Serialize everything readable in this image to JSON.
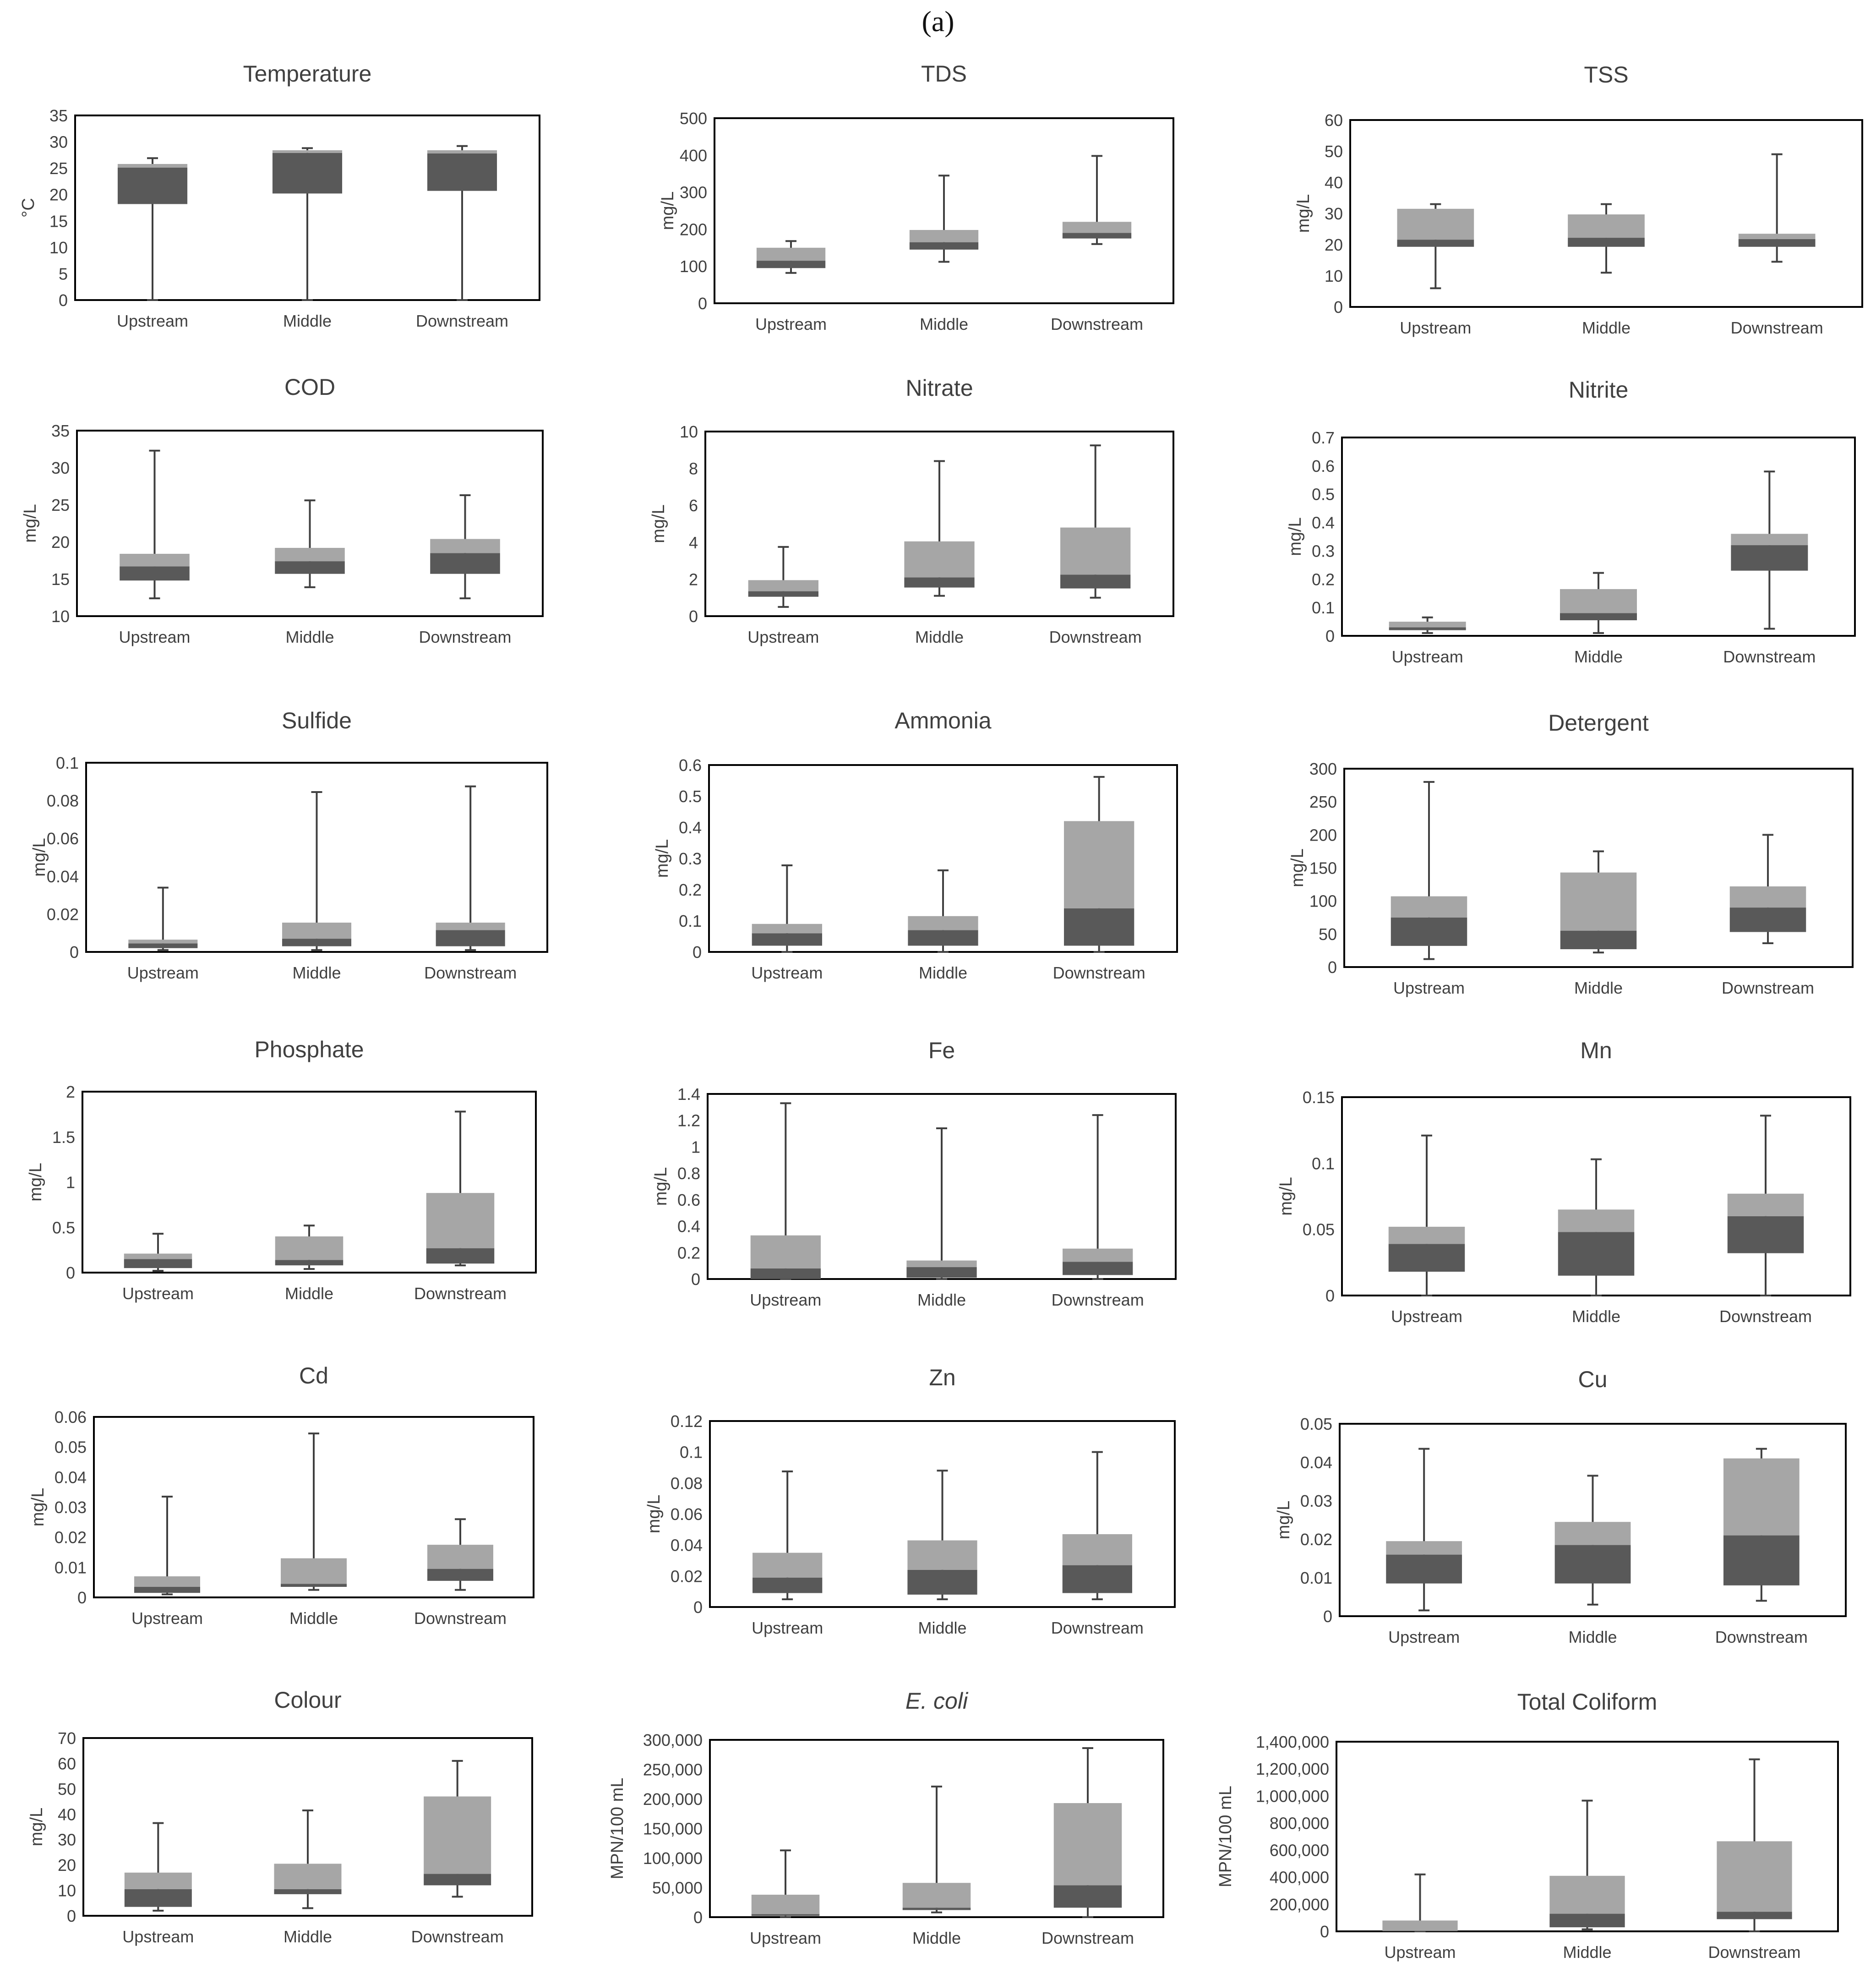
{
  "figure_label": "(a)",
  "colors": {
    "upper_box": "#a6a6a6",
    "lower_box": "#595959",
    "whisker": "#404040",
    "frame": "#000000",
    "text": "#404040"
  },
  "chart_data": [
    {
      "type": "box",
      "title": "Temperature",
      "title_italic": false,
      "ylabel": "°C",
      "yticks": [
        "0",
        "5",
        "10",
        "15",
        "20",
        "25",
        "30",
        "35"
      ],
      "ylim": [
        0,
        35
      ],
      "categories": [
        "Upstream",
        "Middle",
        "Downstream"
      ],
      "boxes": [
        {
          "min": 0,
          "q1": 18.2,
          "median": 25.1,
          "q3": 25.8,
          "max": 26.9
        },
        {
          "min": 0,
          "q1": 20.2,
          "median": 27.9,
          "q3": 28.4,
          "max": 28.8
        },
        {
          "min": 0,
          "q1": 20.7,
          "median": 27.8,
          "q3": 28.4,
          "max": 29.2
        }
      ]
    },
    {
      "type": "box",
      "title": "TDS",
      "title_italic": false,
      "ylabel": "mg/L",
      "yticks": [
        "0",
        "100",
        "200",
        "300",
        "400",
        "500"
      ],
      "ylim": [
        0,
        500
      ],
      "categories": [
        "Upstream",
        "Middle",
        "Downstream"
      ],
      "boxes": [
        {
          "min": 82,
          "q1": 95,
          "median": 115,
          "q3": 150,
          "max": 168
        },
        {
          "min": 112,
          "q1": 145,
          "median": 165,
          "q3": 198,
          "max": 345
        },
        {
          "min": 160,
          "q1": 175,
          "median": 190,
          "q3": 220,
          "max": 398
        }
      ]
    },
    {
      "type": "box",
      "title": "TSS",
      "title_italic": false,
      "ylabel": "mg/L",
      "yticks": [
        "0",
        "10",
        "20",
        "30",
        "40",
        "50",
        "60"
      ],
      "ylim": [
        0,
        60
      ],
      "categories": [
        "Upstream",
        "Middle",
        "Downstream"
      ],
      "boxes": [
        {
          "min": 6,
          "q1": 19.3,
          "median": 21.6,
          "q3": 31.5,
          "max": 33
        },
        {
          "min": 11,
          "q1": 19.3,
          "median": 22.2,
          "q3": 29.7,
          "max": 33
        },
        {
          "min": 14.5,
          "q1": 19.3,
          "median": 21.8,
          "q3": 23.5,
          "max": 49
        }
      ]
    },
    {
      "type": "box",
      "title": "COD",
      "title_italic": false,
      "ylabel": "mg/L",
      "yticks": [
        "10",
        "15",
        "20",
        "25",
        "30",
        "35"
      ],
      "ylim": [
        10,
        35
      ],
      "categories": [
        "Upstream",
        "Middle",
        "Downstream"
      ],
      "boxes": [
        {
          "min": 12.4,
          "q1": 14.8,
          "median": 16.7,
          "q3": 18.4,
          "max": 32.3
        },
        {
          "min": 13.9,
          "q1": 15.7,
          "median": 17.4,
          "q3": 19.2,
          "max": 25.6
        },
        {
          "min": 12.4,
          "q1": 15.7,
          "median": 18.5,
          "q3": 20.4,
          "max": 26.3
        }
      ]
    },
    {
      "type": "box",
      "title": "Nitrate",
      "title_italic": false,
      "ylabel": "mg/L",
      "yticks": [
        "0",
        "2",
        "4",
        "6",
        "8",
        "10"
      ],
      "ylim": [
        0,
        10
      ],
      "categories": [
        "Upstream",
        "Middle",
        "Downstream"
      ],
      "boxes": [
        {
          "min": 0.5,
          "q1": 1.05,
          "median": 1.35,
          "q3": 1.95,
          "max": 3.75
        },
        {
          "min": 1.1,
          "q1": 1.55,
          "median": 2.1,
          "q3": 4.05,
          "max": 8.4
        },
        {
          "min": 1.0,
          "q1": 1.5,
          "median": 2.25,
          "q3": 4.8,
          "max": 9.25
        }
      ]
    },
    {
      "type": "box",
      "title": "Nitrite",
      "title_italic": false,
      "ylabel": "mg/L",
      "yticks": [
        "0",
        "0.1",
        "0.2",
        "0.3",
        "0.4",
        "0.5",
        "0.6",
        "0.7"
      ],
      "ylim": [
        0,
        0.7
      ],
      "categories": [
        "Upstream",
        "Middle",
        "Downstream"
      ],
      "boxes": [
        {
          "min": 0.01,
          "q1": 0.02,
          "median": 0.03,
          "q3": 0.05,
          "max": 0.065
        },
        {
          "min": 0.01,
          "q1": 0.055,
          "median": 0.08,
          "q3": 0.165,
          "max": 0.222
        },
        {
          "min": 0.025,
          "q1": 0.23,
          "median": 0.32,
          "q3": 0.36,
          "max": 0.58
        }
      ]
    },
    {
      "type": "box",
      "title": "Sulfide",
      "title_italic": false,
      "ylabel": "mg/L",
      "yticks": [
        "0",
        "0.02",
        "0.04",
        "0.06",
        "0.08",
        "0.1"
      ],
      "ylim": [
        0,
        0.1
      ],
      "categories": [
        "Upstream",
        "Middle",
        "Downstream"
      ],
      "boxes": [
        {
          "min": 0.001,
          "q1": 0.002,
          "median": 0.0045,
          "q3": 0.0065,
          "max": 0.034
        },
        {
          "min": 0.001,
          "q1": 0.003,
          "median": 0.007,
          "q3": 0.0155,
          "max": 0.0845
        },
        {
          "min": 0.001,
          "q1": 0.003,
          "median": 0.0115,
          "q3": 0.0155,
          "max": 0.0875
        }
      ]
    },
    {
      "type": "box",
      "title": "Ammonia",
      "title_italic": false,
      "ylabel": "mg/L",
      "yticks": [
        "0",
        "0.1",
        "0.2",
        "0.3",
        "0.4",
        "0.5",
        "0.6"
      ],
      "ylim": [
        0,
        0.6
      ],
      "categories": [
        "Upstream",
        "Middle",
        "Downstream"
      ],
      "boxes": [
        {
          "min": 0.0,
          "q1": 0.02,
          "median": 0.06,
          "q3": 0.09,
          "max": 0.278
        },
        {
          "min": 0.0,
          "q1": 0.02,
          "median": 0.07,
          "q3": 0.115,
          "max": 0.262
        },
        {
          "min": 0.0,
          "q1": 0.02,
          "median": 0.14,
          "q3": 0.42,
          "max": 0.562
        }
      ]
    },
    {
      "type": "box",
      "title": "Detergent",
      "title_italic": false,
      "ylabel": "mg/L",
      "yticks": [
        "0",
        "50",
        "100",
        "150",
        "200",
        "250",
        "300"
      ],
      "ylim": [
        0,
        300
      ],
      "categories": [
        "Upstream",
        "Middle",
        "Downstream"
      ],
      "boxes": [
        {
          "min": 12,
          "q1": 32,
          "median": 75,
          "q3": 107,
          "max": 280
        },
        {
          "min": 22,
          "q1": 27,
          "median": 55,
          "q3": 143,
          "max": 175
        },
        {
          "min": 36,
          "q1": 53,
          "median": 90,
          "q3": 122,
          "max": 200
        }
      ]
    },
    {
      "type": "box",
      "title": "Phosphate",
      "title_italic": false,
      "ylabel": "mg/L",
      "yticks": [
        "0",
        "0.5",
        "1",
        "1.5",
        "2"
      ],
      "ylim": [
        0,
        2
      ],
      "categories": [
        "Upstream",
        "Middle",
        "Downstream"
      ],
      "boxes": [
        {
          "min": 0.02,
          "q1": 0.05,
          "median": 0.15,
          "q3": 0.21,
          "max": 0.43
        },
        {
          "min": 0.04,
          "q1": 0.08,
          "median": 0.14,
          "q3": 0.4,
          "max": 0.52
        },
        {
          "min": 0.08,
          "q1": 0.1,
          "median": 0.27,
          "q3": 0.88,
          "max": 1.78
        }
      ]
    },
    {
      "type": "box",
      "title": "Fe",
      "title_italic": false,
      "ylabel": "mg/L",
      "yticks": [
        "0",
        "0.2",
        "0.4",
        "0.6",
        "0.8",
        "1",
        "1.2",
        "1.4"
      ],
      "ylim": [
        0,
        1.4
      ],
      "categories": [
        "Upstream",
        "Middle",
        "Downstream"
      ],
      "boxes": [
        {
          "min": 0.0,
          "q1": 0.0,
          "median": 0.08,
          "q3": 0.33,
          "max": 1.33
        },
        {
          "min": 0.0,
          "q1": 0.01,
          "median": 0.09,
          "q3": 0.14,
          "max": 1.14
        },
        {
          "min": 0.0,
          "q1": 0.03,
          "median": 0.13,
          "q3": 0.23,
          "max": 1.24
        }
      ]
    },
    {
      "type": "box",
      "title": "Mn",
      "title_italic": false,
      "ylabel": "mg/L",
      "yticks": [
        "0",
        "0.05",
        "0.1",
        "0.15"
      ],
      "ylim": [
        0,
        0.15
      ],
      "categories": [
        "Upstream",
        "Middle",
        "Downstream"
      ],
      "boxes": [
        {
          "min": 0.0,
          "q1": 0.018,
          "median": 0.039,
          "q3": 0.052,
          "max": 0.121
        },
        {
          "min": 0.0,
          "q1": 0.015,
          "median": 0.048,
          "q3": 0.065,
          "max": 0.103
        },
        {
          "min": 0.0,
          "q1": 0.032,
          "median": 0.06,
          "q3": 0.077,
          "max": 0.136
        }
      ]
    },
    {
      "type": "box",
      "title": "Cd",
      "title_italic": false,
      "ylabel": "mg/L",
      "yticks": [
        "0",
        "0.01",
        "0.02",
        "0.03",
        "0.04",
        "0.05",
        "0.06"
      ],
      "ylim": [
        0,
        0.06
      ],
      "categories": [
        "Upstream",
        "Middle",
        "Downstream"
      ],
      "boxes": [
        {
          "min": 0.001,
          "q1": 0.0015,
          "median": 0.0035,
          "q3": 0.007,
          "max": 0.0335
        },
        {
          "min": 0.0025,
          "q1": 0.0035,
          "median": 0.0045,
          "q3": 0.013,
          "max": 0.0545
        },
        {
          "min": 0.0025,
          "q1": 0.0055,
          "median": 0.0095,
          "q3": 0.0175,
          "max": 0.026
        }
      ]
    },
    {
      "type": "box",
      "title": "Zn",
      "title_italic": false,
      "ylabel": "mg/L",
      "yticks": [
        "0",
        "0.02",
        "0.04",
        "0.06",
        "0.08",
        "0.1",
        "0.12"
      ],
      "ylim": [
        0,
        0.12
      ],
      "categories": [
        "Upstream",
        "Middle",
        "Downstream"
      ],
      "boxes": [
        {
          "min": 0.005,
          "q1": 0.009,
          "median": 0.019,
          "q3": 0.035,
          "max": 0.0875
        },
        {
          "min": 0.005,
          "q1": 0.008,
          "median": 0.024,
          "q3": 0.043,
          "max": 0.088
        },
        {
          "min": 0.005,
          "q1": 0.009,
          "median": 0.027,
          "q3": 0.047,
          "max": 0.1
        }
      ]
    },
    {
      "type": "box",
      "title": "Cu",
      "title_italic": false,
      "ylabel": "mg/L",
      "yticks": [
        "0",
        "0.01",
        "0.02",
        "0.03",
        "0.04",
        "0.05"
      ],
      "ylim": [
        0,
        0.05
      ],
      "categories": [
        "Upstream",
        "Middle",
        "Downstream"
      ],
      "boxes": [
        {
          "min": 0.0015,
          "q1": 0.0085,
          "median": 0.016,
          "q3": 0.0195,
          "max": 0.0435
        },
        {
          "min": 0.003,
          "q1": 0.0085,
          "median": 0.0185,
          "q3": 0.0245,
          "max": 0.0365
        },
        {
          "min": 0.004,
          "q1": 0.008,
          "median": 0.021,
          "q3": 0.041,
          "max": 0.0435
        }
      ]
    },
    {
      "type": "box",
      "title": "Colour",
      "title_italic": false,
      "ylabel": "mg/L",
      "yticks": [
        "0",
        "10",
        "20",
        "30",
        "40",
        "50",
        "60",
        "70"
      ],
      "ylim": [
        0,
        70
      ],
      "categories": [
        "Upstream",
        "Middle",
        "Downstream"
      ],
      "boxes": [
        {
          "min": 2,
          "q1": 3.5,
          "median": 10.5,
          "q3": 17,
          "max": 36.5
        },
        {
          "min": 3,
          "q1": 8.5,
          "median": 10.5,
          "q3": 20.5,
          "max": 41.5
        },
        {
          "min": 7.5,
          "q1": 12,
          "median": 16.5,
          "q3": 47,
          "max": 61
        }
      ]
    },
    {
      "type": "box",
      "title": "E. coli",
      "title_italic": true,
      "ylabel": "MPN/100 mL",
      "yticks": [
        "0",
        "50,000",
        "100,000",
        "150,000",
        "200,000",
        "250,000",
        "300,000"
      ],
      "ylim": [
        0,
        300000
      ],
      "categories": [
        "Upstream",
        "Middle",
        "Downstream"
      ],
      "boxes": [
        {
          "min": 0,
          "q1": 2000,
          "median": 5000,
          "q3": 38000,
          "max": 113000
        },
        {
          "min": 8000,
          "q1": 12000,
          "median": 16000,
          "q3": 58000,
          "max": 221000
        },
        {
          "min": 0,
          "q1": 16000,
          "median": 54000,
          "q3": 193000,
          "max": 286000
        }
      ]
    },
    {
      "type": "box",
      "title": "Total Coliform",
      "title_italic": false,
      "ylabel": "MPN/100 mL",
      "yticks": [
        "0",
        "200,000",
        "400,000",
        "600,000",
        "800,000",
        "1,000,000",
        "1,200,000",
        "1,400,000"
      ],
      "ylim": [
        0,
        1400000
      ],
      "categories": [
        "Upstream",
        "Middle",
        "Downstream"
      ],
      "boxes": [
        {
          "min": 0,
          "q1": 0,
          "median": 4000,
          "q3": 80000,
          "max": 420000
        },
        {
          "min": 15000,
          "q1": 30000,
          "median": 130000,
          "q3": 410000,
          "max": 965000
        },
        {
          "min": 0,
          "q1": 90000,
          "median": 145000,
          "q3": 665000,
          "max": 1270000
        }
      ]
    }
  ]
}
